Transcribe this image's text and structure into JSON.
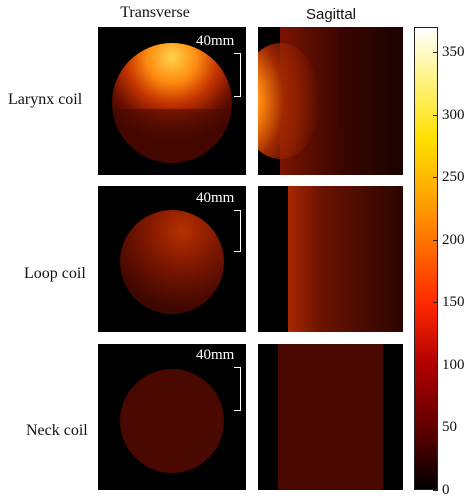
{
  "columns": [
    "Transverse",
    "Sagittal"
  ],
  "rows": [
    {
      "label": "Larynx coil",
      "scale_label": "40mm"
    },
    {
      "label": "Loop coil",
      "scale_label": "40mm"
    },
    {
      "label": "Neck coil",
      "scale_label": "40mm"
    }
  ],
  "colorbar": {
    "ticks": [
      "350",
      "300",
      "250",
      "200",
      "150",
      "100",
      "50",
      "0"
    ],
    "min": 0,
    "max": 370,
    "colormap": "hot"
  }
}
